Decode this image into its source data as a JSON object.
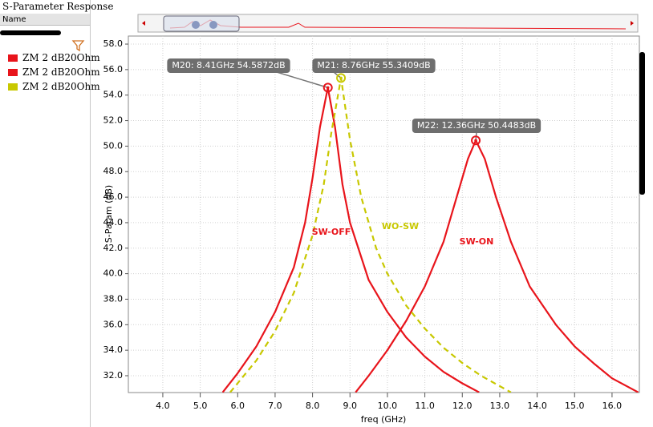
{
  "panel": {
    "title": "S-Parameter Response",
    "header": "Name"
  },
  "chart_data": {
    "type": "line",
    "xlabel": "freq (GHz)",
    "ylabel": "S-Param (dB)",
    "xlim": [
      3.08,
      16.73
    ],
    "ylim": [
      30.68,
      58.63
    ],
    "xticks": [
      {
        "value": 4,
        "label": "4.0"
      },
      {
        "value": 5,
        "label": "5.0"
      },
      {
        "value": 6,
        "label": "6.0"
      },
      {
        "value": 7,
        "label": "7.0"
      },
      {
        "value": 8,
        "label": "8.0"
      },
      {
        "value": 9,
        "label": "9.0"
      },
      {
        "value": 10,
        "label": "10.0"
      },
      {
        "value": 11,
        "label": "11.0"
      },
      {
        "value": 12,
        "label": "12.0"
      },
      {
        "value": 13,
        "label": "13.0"
      },
      {
        "value": 14,
        "label": "14.0"
      },
      {
        "value": 15,
        "label": "15.0"
      },
      {
        "value": 16,
        "label": "16.0"
      }
    ],
    "yticks": [
      {
        "value": 32,
        "label": "32.0"
      },
      {
        "value": 34,
        "label": "34.0"
      },
      {
        "value": 36,
        "label": "36.0"
      },
      {
        "value": 38,
        "label": "38.0"
      },
      {
        "value": 40,
        "label": "40.0"
      },
      {
        "value": 42,
        "label": "42.0"
      },
      {
        "value": 44,
        "label": "44.0"
      },
      {
        "value": 46,
        "label": "46.0"
      },
      {
        "value": 48,
        "label": "48.0"
      },
      {
        "value": 50,
        "label": "50.0"
      },
      {
        "value": 52,
        "label": "52.0"
      },
      {
        "value": 54,
        "label": "54.0"
      },
      {
        "value": 56,
        "label": "56.0"
      },
      {
        "value": 58,
        "label": "58.0"
      }
    ],
    "grid": true,
    "series": [
      {
        "name": "ZM 2 dB20Ohm",
        "color": "#e8141b",
        "dashed": false,
        "x": [
          5.6,
          6.0,
          6.5,
          7.0,
          7.5,
          7.8,
          8.0,
          8.2,
          8.41,
          8.6,
          8.8,
          9.0,
          9.5,
          10.0,
          10.5,
          11.0,
          11.5,
          12.0,
          12.45
        ],
        "values": [
          30.7,
          32.2,
          34.3,
          37.0,
          40.5,
          44.0,
          47.5,
          51.5,
          54.59,
          51.5,
          47.0,
          44.0,
          39.5,
          37.0,
          35.0,
          33.5,
          32.3,
          31.4,
          30.7
        ]
      },
      {
        "name": "ZM 2 dB20Ohm",
        "color": "#e8141b",
        "dashed": false,
        "x": [
          9.15,
          9.5,
          10.0,
          10.5,
          11.0,
          11.5,
          11.9,
          12.15,
          12.36,
          12.6,
          12.9,
          13.3,
          13.8,
          14.5,
          15.0,
          15.5,
          16.0,
          16.7
        ],
        "values": [
          30.7,
          32.0,
          34.0,
          36.3,
          39.0,
          42.5,
          46.5,
          49.0,
          50.45,
          49.0,
          46.0,
          42.5,
          39.0,
          36.0,
          34.3,
          33.0,
          31.8,
          30.7
        ]
      },
      {
        "name": "ZM 2 dB20Ohm",
        "color": "#c8c800",
        "dashed": true,
        "x": [
          5.8,
          6.5,
          7.0,
          7.5,
          8.0,
          8.3,
          8.5,
          8.76,
          9.0,
          9.3,
          9.7,
          10.0,
          10.5,
          11.0,
          11.5,
          12.0,
          12.5,
          13.3
        ],
        "values": [
          30.7,
          33.2,
          35.5,
          38.5,
          43.0,
          47.0,
          51.0,
          55.34,
          50.5,
          46.0,
          42.0,
          40.0,
          37.5,
          35.7,
          34.2,
          33.0,
          32.0,
          30.7
        ]
      }
    ],
    "markers": [
      {
        "label": "M20: 8.41GHz 54.5872dB",
        "x": 8.41,
        "y": 54.5872,
        "color": "#e8141b"
      },
      {
        "label": "M21: 8.76GHz 55.3409dB",
        "x": 8.76,
        "y": 55.3409,
        "color": "#c8c800"
      },
      {
        "label": "M22: 12.36GHz 50.4483dB",
        "x": 12.36,
        "y": 50.4483,
        "color": "#e8141b"
      }
    ],
    "annotations": [
      {
        "text": "SW-OFF",
        "color": "#e8141b"
      },
      {
        "text": "WO-SW",
        "color": "#c8c800"
      },
      {
        "text": "SW-ON",
        "color": "#e8141b"
      }
    ]
  }
}
